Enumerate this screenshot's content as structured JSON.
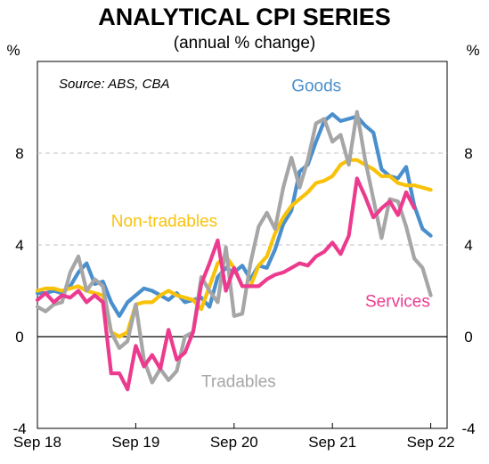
{
  "chart_data": {
    "type": "line",
    "title": "ANALYTICAL CPI SERIES",
    "subtitle": "(annual % change)",
    "ylabel_left": "%",
    "ylabel_right": "%",
    "source": "Source: ABS, CBA",
    "ylim": [
      -4,
      12
    ],
    "yticks": [
      -4,
      0,
      4,
      8
    ],
    "xlim": [
      "2018-09",
      "2022-11"
    ],
    "xtick_labels": [
      "Sep 18",
      "Sep 19",
      "Sep 20",
      "Sep 21",
      "Sep 22"
    ],
    "xtick_dates": [
      "2018-09",
      "2019-09",
      "2020-09",
      "2021-09",
      "2022-09"
    ],
    "grid": true,
    "series": [
      {
        "name": "Goods",
        "color": "#4a8fcd",
        "points": [
          [
            "2018-09",
            1.9
          ],
          [
            "2018-10",
            1.9
          ],
          [
            "2018-11",
            2.0
          ],
          [
            "2018-12",
            1.9
          ],
          [
            "2019-01",
            2.2
          ],
          [
            "2019-02",
            2.8
          ],
          [
            "2019-03",
            3.2
          ],
          [
            "2019-04",
            2.3
          ],
          [
            "2019-05",
            2.4
          ],
          [
            "2019-06",
            1.5
          ],
          [
            "2019-07",
            0.9
          ],
          [
            "2019-08",
            1.5
          ],
          [
            "2019-09",
            1.8
          ],
          [
            "2019-10",
            2.1
          ],
          [
            "2019-11",
            2.0
          ],
          [
            "2019-12",
            1.8
          ],
          [
            "2020-01",
            1.6
          ],
          [
            "2020-02",
            1.9
          ],
          [
            "2020-03",
            1.5
          ],
          [
            "2020-04",
            1.6
          ],
          [
            "2020-05",
            1.7
          ],
          [
            "2020-06",
            1.3
          ],
          [
            "2020-07",
            2.6
          ],
          [
            "2020-08",
            3.0
          ],
          [
            "2020-09",
            2.8
          ],
          [
            "2020-10",
            3.1
          ],
          [
            "2020-11",
            2.5
          ],
          [
            "2020-12",
            3.1
          ],
          [
            "2021-01",
            3.0
          ],
          [
            "2021-02",
            3.8
          ],
          [
            "2021-03",
            4.9
          ],
          [
            "2021-04",
            5.5
          ],
          [
            "2021-05",
            7.2
          ],
          [
            "2021-06",
            7.5
          ],
          [
            "2021-07",
            8.5
          ],
          [
            "2021-08",
            9.4
          ],
          [
            "2021-09",
            9.7
          ],
          [
            "2021-10",
            9.4
          ],
          [
            "2021-11",
            9.5
          ],
          [
            "2021-12",
            9.6
          ],
          [
            "2022-01",
            9.2
          ],
          [
            "2022-02",
            8.9
          ],
          [
            "2022-03",
            7.3
          ],
          [
            "2022-04",
            7.0
          ],
          [
            "2022-05",
            6.9
          ],
          [
            "2022-06",
            7.4
          ],
          [
            "2022-07",
            5.7
          ],
          [
            "2022-08",
            4.7
          ],
          [
            "2022-09",
            4.4
          ]
        ]
      },
      {
        "name": "Non-tradables",
        "color": "#f9c20a",
        "points": [
          [
            "2018-09",
            2.0
          ],
          [
            "2018-10",
            2.1
          ],
          [
            "2018-11",
            2.1
          ],
          [
            "2018-12",
            2.0
          ],
          [
            "2019-01",
            2.1
          ],
          [
            "2019-02",
            2.2
          ],
          [
            "2019-03",
            2.0
          ],
          [
            "2019-04",
            1.9
          ],
          [
            "2019-05",
            1.8
          ],
          [
            "2019-06",
            0.2
          ],
          [
            "2019-07",
            0.0
          ],
          [
            "2019-08",
            0.2
          ],
          [
            "2019-09",
            1.4
          ],
          [
            "2019-10",
            1.5
          ],
          [
            "2019-11",
            1.5
          ],
          [
            "2019-12",
            1.8
          ],
          [
            "2020-01",
            2.0
          ],
          [
            "2020-02",
            1.8
          ],
          [
            "2020-03",
            1.7
          ],
          [
            "2020-04",
            1.6
          ],
          [
            "2020-05",
            1.2
          ],
          [
            "2020-06",
            2.2
          ],
          [
            "2020-07",
            3.2
          ],
          [
            "2020-08",
            3.5
          ],
          [
            "2020-09",
            3.0
          ],
          [
            "2020-10",
            2.2
          ],
          [
            "2020-11",
            2.2
          ],
          [
            "2020-12",
            3.1
          ],
          [
            "2021-01",
            3.5
          ],
          [
            "2021-02",
            4.5
          ],
          [
            "2021-03",
            5.2
          ],
          [
            "2021-04",
            5.7
          ],
          [
            "2021-05",
            6.0
          ],
          [
            "2021-06",
            6.3
          ],
          [
            "2021-07",
            6.7
          ],
          [
            "2021-08",
            6.8
          ],
          [
            "2021-09",
            7.0
          ],
          [
            "2021-10",
            7.5
          ],
          [
            "2021-11",
            7.7
          ],
          [
            "2021-12",
            7.7
          ],
          [
            "2022-01",
            7.5
          ],
          [
            "2022-02",
            7.3
          ],
          [
            "2022-03",
            7.0
          ],
          [
            "2022-04",
            7.0
          ],
          [
            "2022-05",
            6.7
          ],
          [
            "2022-06",
            6.6
          ],
          [
            "2022-07",
            6.6
          ],
          [
            "2022-08",
            6.5
          ],
          [
            "2022-09",
            6.4
          ]
        ]
      },
      {
        "name": "Tradables",
        "color": "#a6a6a6",
        "points": [
          [
            "2018-09",
            1.3
          ],
          [
            "2018-10",
            1.1
          ],
          [
            "2018-11",
            1.4
          ],
          [
            "2018-12",
            1.5
          ],
          [
            "2019-01",
            2.8
          ],
          [
            "2019-02",
            3.5
          ],
          [
            "2019-03",
            2.0
          ],
          [
            "2019-04",
            2.5
          ],
          [
            "2019-05",
            2.2
          ],
          [
            "2019-06",
            0.2
          ],
          [
            "2019-07",
            -0.5
          ],
          [
            "2019-08",
            -0.2
          ],
          [
            "2019-09",
            1.4
          ],
          [
            "2019-10",
            -1.0
          ],
          [
            "2019-11",
            -2.0
          ],
          [
            "2019-12",
            -1.4
          ],
          [
            "2020-01",
            -1.9
          ],
          [
            "2020-02",
            -1.5
          ],
          [
            "2020-03",
            0.0
          ],
          [
            "2020-04",
            0.2
          ],
          [
            "2020-05",
            2.6
          ],
          [
            "2020-06",
            2.0
          ],
          [
            "2020-07",
            1.5
          ],
          [
            "2020-08",
            3.9
          ],
          [
            "2020-09",
            0.9
          ],
          [
            "2020-10",
            1.0
          ],
          [
            "2020-11",
            3.2
          ],
          [
            "2020-12",
            4.8
          ],
          [
            "2021-01",
            5.4
          ],
          [
            "2021-02",
            4.7
          ],
          [
            "2021-03",
            6.5
          ],
          [
            "2021-04",
            7.8
          ],
          [
            "2021-05",
            6.5
          ],
          [
            "2021-06",
            7.7
          ],
          [
            "2021-07",
            9.3
          ],
          [
            "2021-08",
            9.5
          ],
          [
            "2021-09",
            8.5
          ],
          [
            "2021-10",
            8.8
          ],
          [
            "2021-11",
            7.5
          ],
          [
            "2021-12",
            9.8
          ],
          [
            "2022-01",
            7.7
          ],
          [
            "2022-02",
            6.0
          ],
          [
            "2022-03",
            4.3
          ],
          [
            "2022-04",
            6.0
          ],
          [
            "2022-05",
            5.9
          ],
          [
            "2022-06",
            4.8
          ],
          [
            "2022-07",
            3.4
          ],
          [
            "2022-08",
            3.0
          ],
          [
            "2022-09",
            1.8
          ]
        ]
      },
      {
        "name": "Services",
        "color": "#ec3b8e",
        "points": [
          [
            "2018-09",
            1.6
          ],
          [
            "2018-10",
            1.9
          ],
          [
            "2018-11",
            1.5
          ],
          [
            "2018-12",
            1.8
          ],
          [
            "2019-01",
            1.7
          ],
          [
            "2019-02",
            2.0
          ],
          [
            "2019-03",
            1.5
          ],
          [
            "2019-04",
            1.8
          ],
          [
            "2019-05",
            1.5
          ],
          [
            "2019-06",
            -1.6
          ],
          [
            "2019-07",
            -1.6
          ],
          [
            "2019-08",
            -2.3
          ],
          [
            "2019-09",
            -0.4
          ],
          [
            "2019-10",
            -1.3
          ],
          [
            "2019-11",
            -0.8
          ],
          [
            "2019-12",
            -1.4
          ],
          [
            "2020-01",
            0.3
          ],
          [
            "2020-02",
            -1.0
          ],
          [
            "2020-03",
            -0.7
          ],
          [
            "2020-04",
            0.2
          ],
          [
            "2020-05",
            2.3
          ],
          [
            "2020-06",
            3.2
          ],
          [
            "2020-07",
            4.2
          ],
          [
            "2020-08",
            2.0
          ],
          [
            "2020-09",
            3.0
          ],
          [
            "2020-10",
            2.2
          ],
          [
            "2020-11",
            2.2
          ],
          [
            "2020-12",
            2.2
          ],
          [
            "2021-01",
            2.5
          ],
          [
            "2021-02",
            2.7
          ],
          [
            "2021-03",
            2.8
          ],
          [
            "2021-04",
            3.0
          ],
          [
            "2021-05",
            3.2
          ],
          [
            "2021-06",
            3.1
          ],
          [
            "2021-07",
            3.5
          ],
          [
            "2021-08",
            3.7
          ],
          [
            "2021-09",
            4.1
          ],
          [
            "2021-10",
            3.6
          ],
          [
            "2021-11",
            4.4
          ],
          [
            "2021-12",
            6.9
          ],
          [
            "2022-01",
            6.1
          ],
          [
            "2022-02",
            5.2
          ],
          [
            "2022-03",
            5.6
          ],
          [
            "2022-04",
            5.9
          ],
          [
            "2022-05",
            5.3
          ],
          [
            "2022-06",
            6.3
          ],
          [
            "2022-07",
            5.6
          ]
        ]
      }
    ],
    "annotations": [
      {
        "text": "Goods",
        "series": "Goods",
        "at": [
          "2021-04",
          10.7
        ]
      },
      {
        "text": "Non-tradables",
        "series": "Non-tradables",
        "at": [
          "2019-06",
          4.8
        ]
      },
      {
        "text": "Services",
        "series": "Services",
        "at": [
          "2022-01",
          1.3
        ]
      },
      {
        "text": "Tradables",
        "series": "Tradables",
        "at": [
          "2020-05",
          -2.2
        ]
      }
    ]
  }
}
